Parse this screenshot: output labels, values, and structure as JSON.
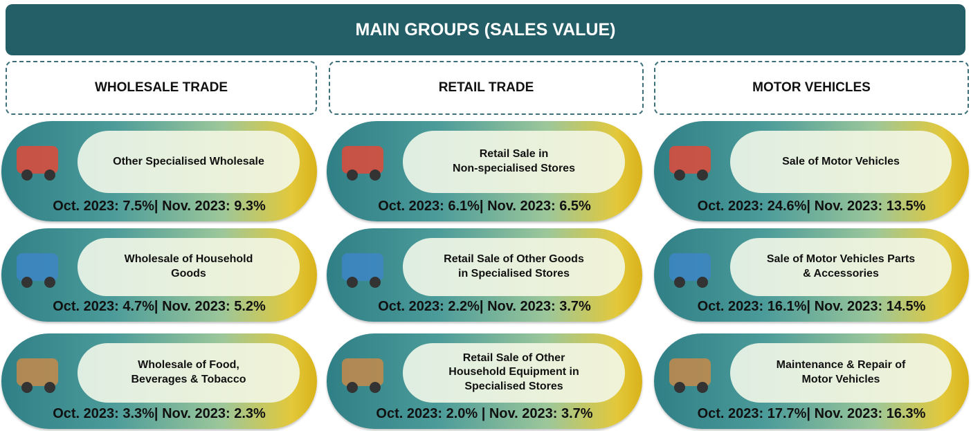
{
  "header": {
    "title": "MAIN GROUPS (SALES VALUE)"
  },
  "columns": [
    {
      "title": "WHOLESALE TRADE",
      "cards": [
        {
          "label": [
            "Other Specialised Wholesale"
          ],
          "stats": "Oct. 2023: 7.5%| Nov. 2023: 9.3%"
        },
        {
          "label": [
            "Wholesale of Household",
            "Goods"
          ],
          "stats": "Oct. 2023: 4.7%| Nov. 2023: 5.2%"
        },
        {
          "label": [
            "Wholesale of Food,",
            "Beverages & Tobacco"
          ],
          "stats": "Oct. 2023: 3.3%| Nov. 2023: 2.3%"
        }
      ]
    },
    {
      "title": "RETAIL TRADE",
      "cards": [
        {
          "label": [
            "Retail Sale in",
            "Non-specialised Stores"
          ],
          "stats": "Oct. 2023: 6.1%| Nov. 2023: 6.5%"
        },
        {
          "label": [
            "Retail Sale of Other Goods",
            "in Specialised Stores"
          ],
          "stats": "Oct. 2023: 2.2%| Nov. 2023: 3.7%"
        },
        {
          "label": [
            "Retail Sale of Other",
            "Household Equipment in",
            "Specialised Stores"
          ],
          "stats": "Oct. 2023: 2.0% | Nov. 2023: 3.7%"
        }
      ]
    },
    {
      "title": "MOTOR VEHICLES",
      "cards": [
        {
          "label": [
            "Sale of Motor Vehicles"
          ],
          "stats": "Oct. 2023: 24.6%| Nov. 2023: 13.5%"
        },
        {
          "label": [
            "Sale of Motor Vehicles Parts",
            "& Accessories"
          ],
          "stats": "Oct. 2023: 16.1%| Nov. 2023: 14.5%"
        },
        {
          "label": [
            "Maintenance & Repair of",
            "Motor Vehicles"
          ],
          "stats": "Oct. 2023: 17.7%| Nov. 2023: 16.3%"
        }
      ]
    }
  ]
}
